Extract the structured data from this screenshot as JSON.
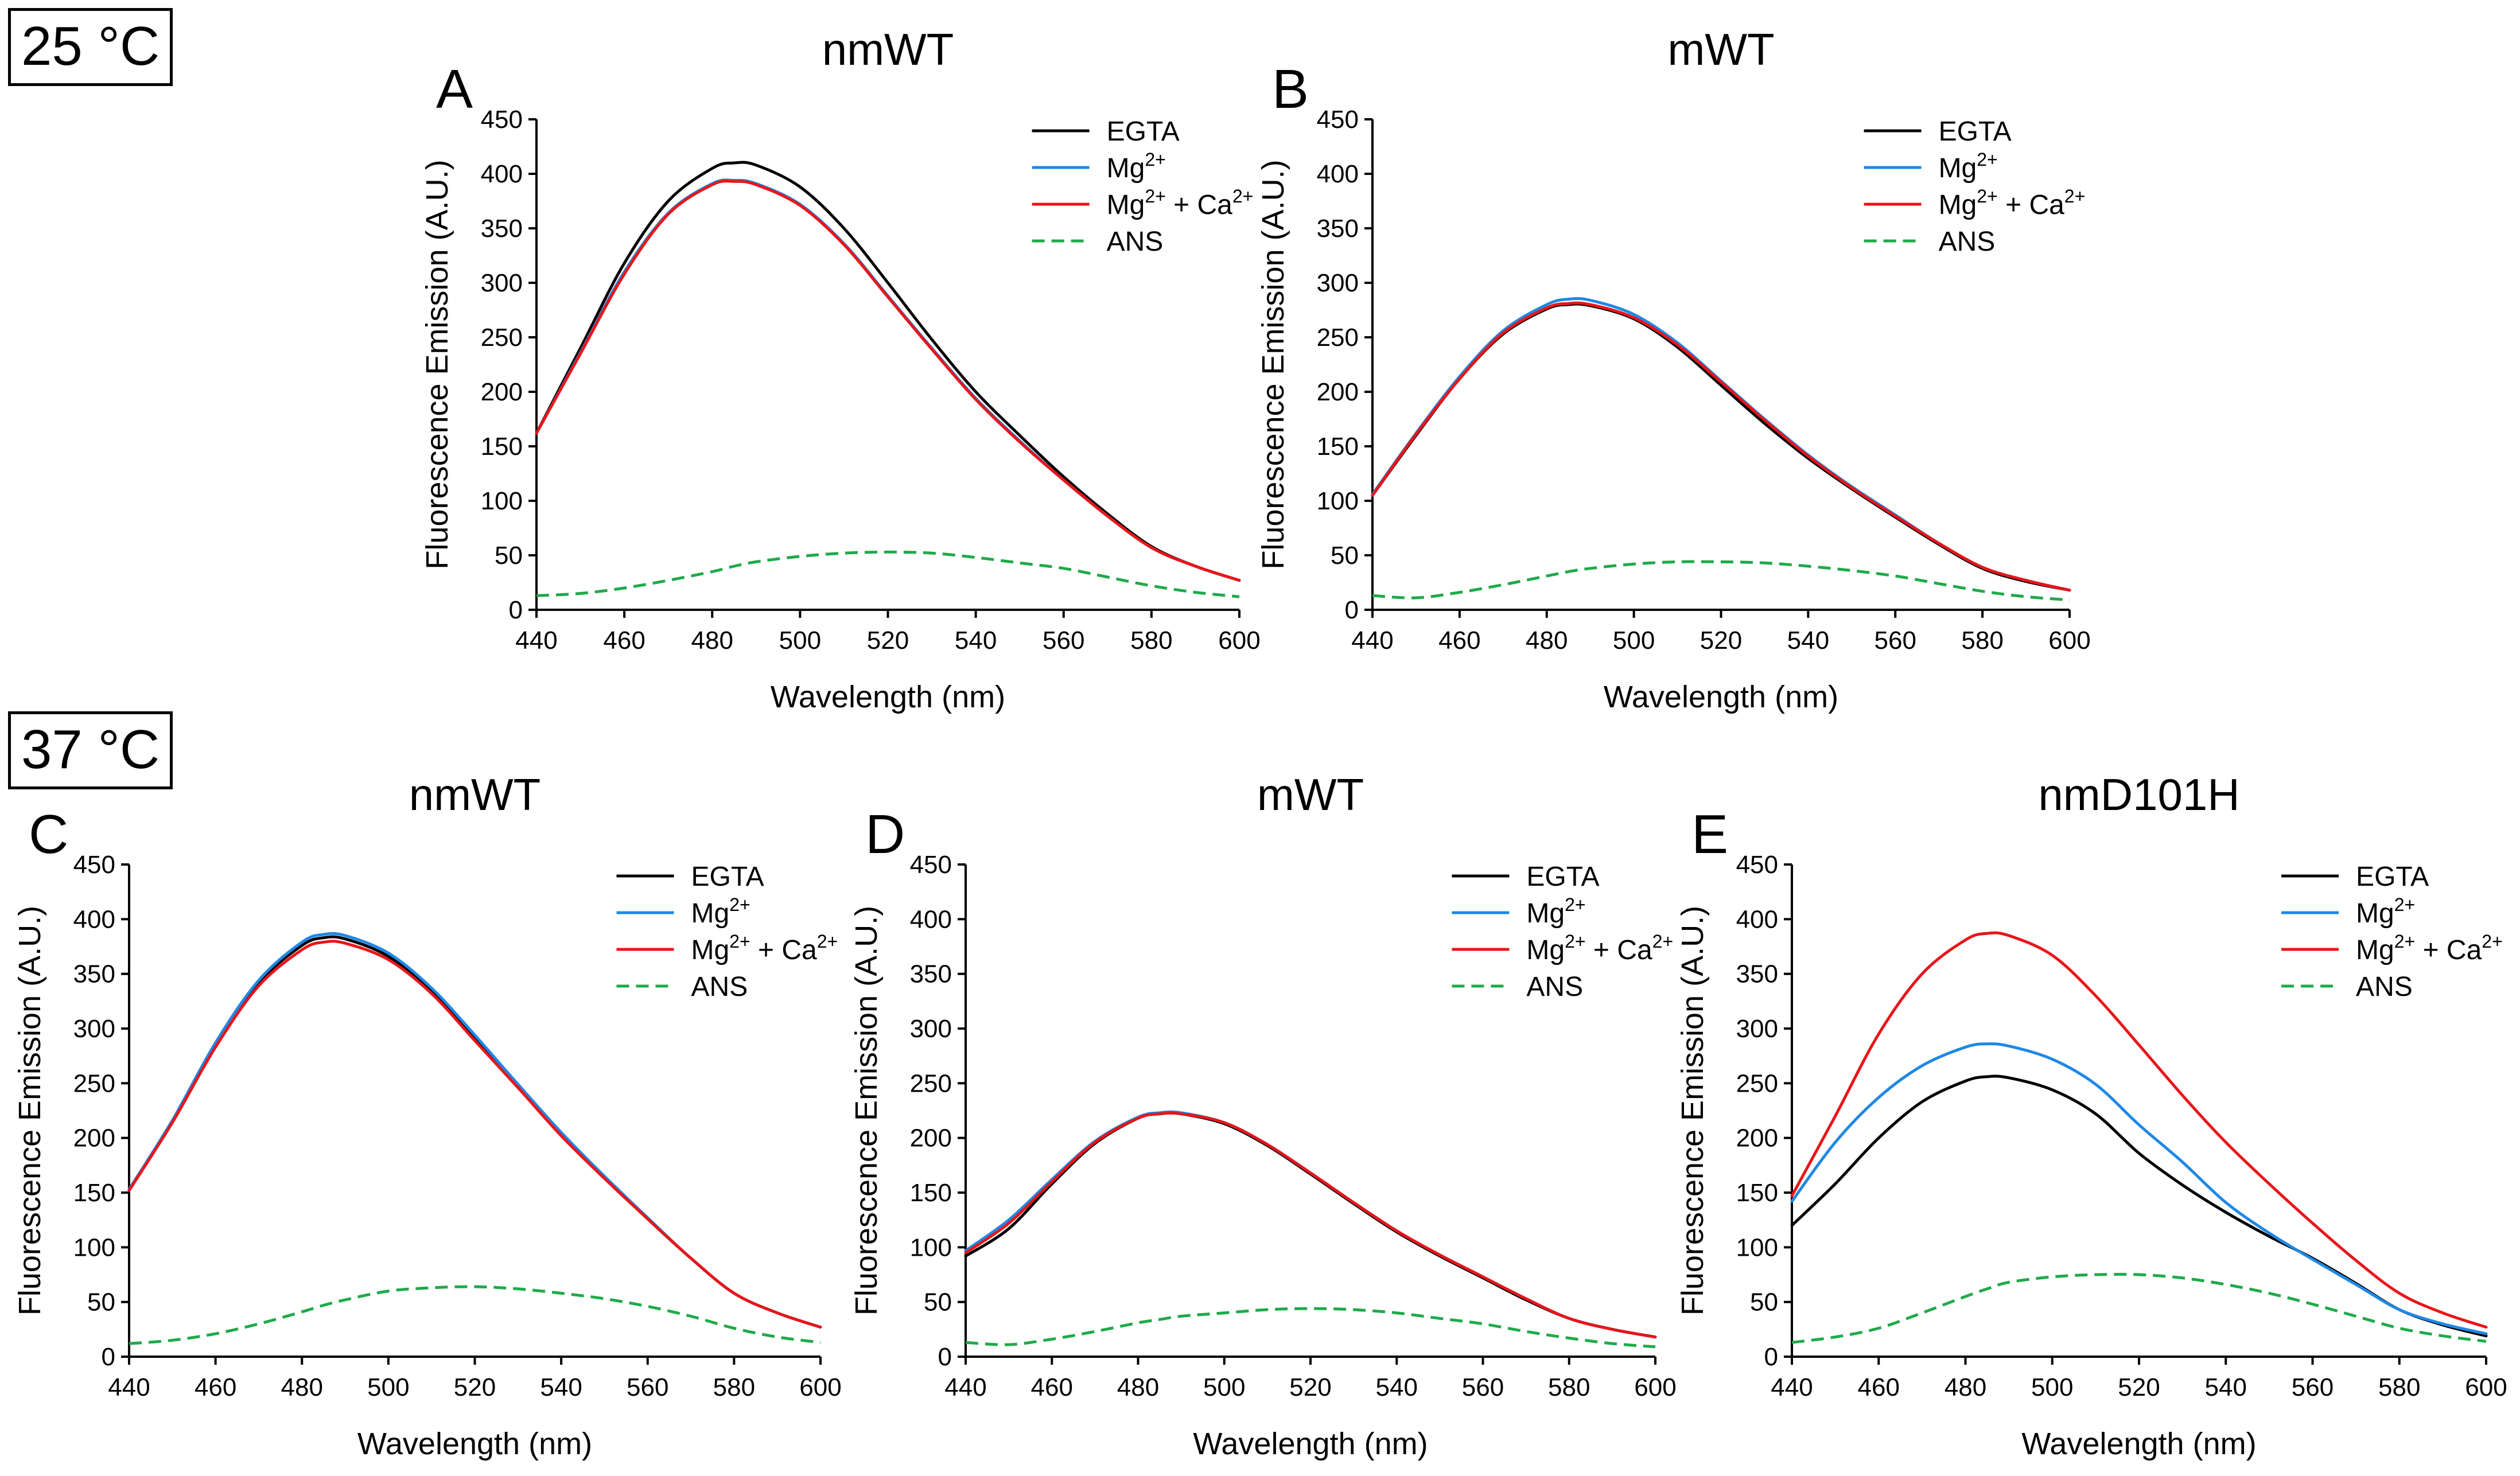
{
  "temperature_labels": {
    "t25": "25 °C",
    "t37": "37 °C"
  },
  "legend_entries": [
    {
      "label": "EGTA",
      "color": "#000000",
      "dash": "none"
    },
    {
      "label": "Mg",
      "sup": "2+",
      "color": "#1e88e5",
      "dash": "none"
    },
    {
      "label": "Mg",
      "sup": "2+",
      "suffix": " + Ca",
      "sup2": "2+",
      "color": "#e8151a",
      "dash": "none"
    },
    {
      "label": "ANS",
      "color": "#1faa4a",
      "dash": "dashed"
    }
  ],
  "colors": {
    "EGTA": "#000000",
    "Mg": "#1e88e5",
    "MgCa": "#e8151a",
    "ANS": "#1faa4a"
  },
  "chart_data": [
    {
      "type": "line",
      "panel": "A",
      "title": "nmWT",
      "condition": "25 °C",
      "xlabel": "Wavelength (nm)",
      "ylabel": "Fluorescence Emission (A.U.)",
      "xlim": [
        440,
        600
      ],
      "ylim": [
        0,
        450
      ],
      "xticks": [
        440,
        460,
        480,
        500,
        520,
        540,
        560,
        580,
        600
      ],
      "yticks": [
        0,
        50,
        100,
        150,
        200,
        250,
        300,
        350,
        400,
        450
      ],
      "x": [
        440,
        450,
        460,
        470,
        480,
        485,
        490,
        500,
        510,
        520,
        530,
        540,
        550,
        560,
        570,
        580,
        590,
        600
      ],
      "series": [
        {
          "name": "EGTA",
          "values": [
            162,
            240,
            318,
            375,
            405,
            410,
            408,
            388,
            350,
            300,
            248,
            200,
            160,
            122,
            88,
            58,
            40,
            27
          ]
        },
        {
          "name": "Mg2+",
          "values": [
            162,
            236,
            310,
            364,
            391,
            394,
            391,
            372,
            336,
            288,
            240,
            194,
            155,
            119,
            86,
            57,
            40,
            27
          ]
        },
        {
          "name": "Mg2+ + Ca2+",
          "values": [
            162,
            235,
            308,
            363,
            390,
            393,
            390,
            371,
            335,
            287,
            239,
            193,
            154,
            119,
            86,
            57,
            40,
            27
          ]
        },
        {
          "name": "ANS",
          "values": [
            13,
            15,
            20,
            27,
            35,
            40,
            44,
            49,
            52,
            53,
            52,
            48,
            43,
            38,
            30,
            22,
            16,
            12
          ]
        }
      ]
    },
    {
      "type": "line",
      "panel": "B",
      "title": "mWT",
      "condition": "25 °C",
      "xlabel": "Wavelength (nm)",
      "ylabel": "Fluorescence Emission (A.U.)",
      "xlim": [
        440,
        600
      ],
      "ylim": [
        0,
        450
      ],
      "xticks": [
        440,
        460,
        480,
        500,
        520,
        540,
        560,
        580,
        600
      ],
      "yticks": [
        0,
        50,
        100,
        150,
        200,
        250,
        300,
        350,
        400,
        450
      ],
      "x": [
        440,
        450,
        460,
        470,
        480,
        485,
        490,
        500,
        510,
        520,
        530,
        540,
        550,
        560,
        570,
        580,
        590,
        600
      ],
      "series": [
        {
          "name": "EGTA",
          "values": [
            105,
            160,
            212,
            253,
            276,
            280,
            279,
            267,
            241,
            206,
            171,
            139,
            111,
            85,
            60,
            38,
            26,
            18
          ]
        },
        {
          "name": "Mg2+",
          "values": [
            106,
            162,
            214,
            256,
            280,
            285,
            284,
            271,
            245,
            210,
            175,
            142,
            113,
            87,
            61,
            39,
            27,
            18
          ]
        },
        {
          "name": "Mg2+ + Ca2+",
          "values": [
            105,
            161,
            212,
            254,
            277,
            281,
            280,
            268,
            243,
            209,
            174,
            141,
            112,
            86,
            61,
            39,
            27,
            18
          ]
        },
        {
          "name": "ANS",
          "values": [
            13,
            11,
            16,
            23,
            31,
            35,
            38,
            42,
            44,
            44,
            43,
            40,
            36,
            31,
            24,
            17,
            12,
            9
          ]
        }
      ]
    },
    {
      "type": "line",
      "panel": "C",
      "title": "nmWT",
      "condition": "37 °C",
      "xlabel": "Wavelength (nm)",
      "ylabel": "Fluorescence Emission (A.U.)",
      "xlim": [
        440,
        600
      ],
      "ylim": [
        0,
        450
      ],
      "xticks": [
        440,
        460,
        480,
        500,
        520,
        540,
        560,
        580,
        600
      ],
      "yticks": [
        0,
        50,
        100,
        150,
        200,
        250,
        300,
        350,
        400,
        450
      ],
      "x": [
        440,
        450,
        460,
        470,
        480,
        485,
        490,
        500,
        510,
        520,
        530,
        540,
        550,
        560,
        570,
        580,
        590,
        600
      ],
      "series": [
        {
          "name": "EGTA",
          "values": [
            152,
            215,
            285,
            342,
            376,
            383,
            382,
            366,
            334,
            291,
            247,
            203,
            164,
            126,
            90,
            58,
            40,
            27
          ]
        },
        {
          "name": "Mg2+",
          "values": [
            153,
            216,
            287,
            344,
            379,
            386,
            385,
            369,
            337,
            294,
            249,
            205,
            165,
            127,
            90,
            58,
            40,
            27
          ]
        },
        {
          "name": "Mg2+ + Ca2+",
          "values": [
            152,
            214,
            283,
            339,
            372,
            379,
            378,
            363,
            332,
            289,
            246,
            202,
            163,
            126,
            90,
            58,
            40,
            27
          ]
        },
        {
          "name": "ANS",
          "values": [
            12,
            15,
            21,
            30,
            41,
            47,
            52,
            60,
            63,
            64,
            62,
            58,
            53,
            46,
            37,
            26,
            18,
            13
          ]
        }
      ]
    },
    {
      "type": "line",
      "panel": "D",
      "title": "mWT",
      "condition": "37 °C",
      "xlabel": "Wavelength (nm)",
      "ylabel": "Fluorescence Emission (A.U.)",
      "xlim": [
        440,
        600
      ],
      "ylim": [
        0,
        450
      ],
      "xticks": [
        440,
        460,
        480,
        500,
        520,
        540,
        560,
        580,
        600
      ],
      "yticks": [
        0,
        50,
        100,
        150,
        200,
        250,
        300,
        350,
        400,
        450
      ],
      "x": [
        440,
        450,
        460,
        470,
        480,
        485,
        490,
        500,
        510,
        520,
        530,
        540,
        550,
        560,
        570,
        580,
        590,
        600
      ],
      "series": [
        {
          "name": "EGTA",
          "values": [
            92,
            117,
            158,
            195,
            218,
            222,
            222,
            213,
            193,
            167,
            140,
            114,
            92,
            72,
            52,
            35,
            25,
            18
          ]
        },
        {
          "name": "Mg2+",
          "values": [
            97,
            125,
            162,
            197,
            219,
            223,
            223,
            214,
            194,
            168,
            141,
            115,
            93,
            73,
            53,
            35,
            25,
            18
          ]
        },
        {
          "name": "Mg2+ + Ca2+",
          "values": [
            95,
            122,
            160,
            196,
            218,
            222,
            222,
            214,
            194,
            168,
            141,
            115,
            93,
            73,
            53,
            35,
            25,
            18
          ]
        },
        {
          "name": "ANS",
          "values": [
            13,
            11,
            16,
            23,
            31,
            34,
            37,
            40,
            43,
            44,
            43,
            40,
            35,
            30,
            23,
            17,
            12,
            9
          ]
        }
      ]
    },
    {
      "type": "line",
      "panel": "E",
      "title": "nmD101H",
      "condition": "37 °C",
      "xlabel": "Wavelength (nm)",
      "ylabel": "Fluorescence Emission (A.U.)",
      "xlim": [
        440,
        600
      ],
      "ylim": [
        0,
        450
      ],
      "xticks": [
        440,
        460,
        480,
        500,
        520,
        540,
        560,
        580,
        600
      ],
      "yticks": [
        0,
        50,
        100,
        150,
        200,
        250,
        300,
        350,
        400,
        450
      ],
      "x": [
        440,
        450,
        460,
        470,
        480,
        485,
        490,
        500,
        510,
        520,
        530,
        540,
        550,
        560,
        570,
        580,
        590,
        600
      ],
      "series": [
        {
          "name": "EGTA",
          "values": [
            120,
            158,
            200,
            233,
            252,
            256,
            255,
            244,
            222,
            186,
            157,
            132,
            110,
            90,
            67,
            43,
            29,
            19
          ]
        },
        {
          "name": "Mg2+",
          "values": [
            142,
            196,
            237,
            266,
            283,
            286,
            284,
            272,
            249,
            212,
            178,
            141,
            113,
            89,
            66,
            43,
            30,
            21
          ]
        },
        {
          "name": "Mg2+ + Ca2+",
          "values": [
            147,
            220,
            295,
            350,
            381,
            387,
            385,
            367,
            330,
            285,
            239,
            196,
            158,
            122,
            88,
            58,
            40,
            27
          ]
        },
        {
          "name": "ANS",
          "values": [
            13,
            18,
            26,
            40,
            55,
            62,
            68,
            73,
            75,
            75,
            72,
            66,
            58,
            48,
            37,
            26,
            19,
            14
          ]
        }
      ]
    }
  ]
}
